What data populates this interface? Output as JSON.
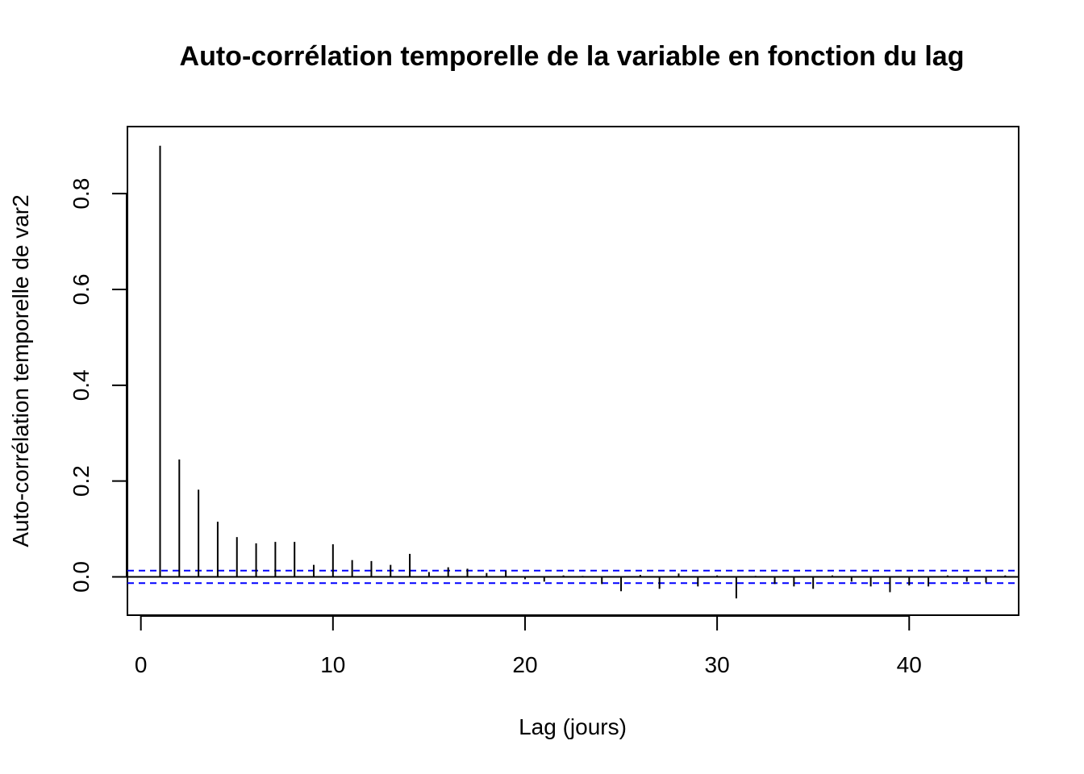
{
  "chart_data": {
    "type": "bar",
    "title": "Auto-corrélation temporelle de la variable en fonction du lag",
    "xlabel": "Lag (jours)",
    "ylabel": "Auto-corrélation temporelle de var2",
    "xlim": [
      -0.7,
      45.7
    ],
    "ylim": [
      -0.08,
      0.94
    ],
    "x_ticks": [
      0,
      10,
      20,
      30,
      40
    ],
    "x_tick_labels": [
      "0",
      "10",
      "20",
      "30",
      "40"
    ],
    "y_ticks": [
      0.0,
      0.2,
      0.4,
      0.6,
      0.8
    ],
    "y_tick_labels": [
      "0.0",
      "0.2",
      "0.4",
      "0.6",
      "0.8"
    ],
    "lags": [
      1,
      2,
      3,
      4,
      5,
      6,
      7,
      8,
      9,
      10,
      11,
      12,
      13,
      14,
      15,
      16,
      17,
      18,
      19,
      20,
      21,
      22,
      23,
      24,
      25,
      26,
      27,
      28,
      29,
      30,
      31,
      32,
      33,
      34,
      35,
      36,
      37,
      38,
      39,
      40,
      41,
      42,
      43,
      44,
      45
    ],
    "values": [
      0.9,
      0.245,
      0.182,
      0.115,
      0.083,
      0.07,
      0.073,
      0.073,
      0.025,
      0.068,
      0.035,
      0.033,
      0.025,
      0.048,
      0.01,
      0.02,
      0.017,
      0.008,
      0.013,
      -0.005,
      -0.01,
      0.003,
      0.002,
      -0.015,
      -0.03,
      0.004,
      -0.025,
      0.007,
      -0.02,
      0.003,
      -0.045,
      0.002,
      -0.015,
      -0.02,
      -0.025,
      0.003,
      -0.01,
      -0.02,
      -0.032,
      -0.018,
      -0.02,
      0.003,
      -0.01,
      -0.012,
      0.003
    ],
    "confidence_bounds": [
      0.013,
      -0.013
    ],
    "colors": {
      "bars": "#000000",
      "confidence": "#0000ff",
      "axes": "#000000"
    }
  }
}
